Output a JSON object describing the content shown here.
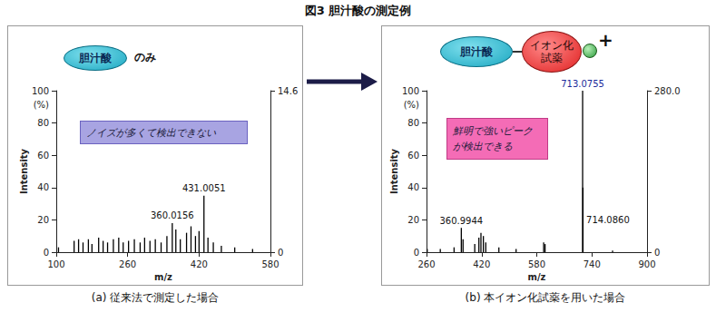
{
  "title": "図3 胆汁酸の測定例",
  "chart_data": [
    {
      "type": "bar",
      "caption": "(a) 従来法で測定した場合",
      "diagram": {
        "molecule": "胆汁酸",
        "suffix": "のみ"
      },
      "annotation": "ノイズが多くて検出できない",
      "xlabel": "m/z",
      "ylabel": "Intensity",
      "ylabel_unit": "(%)",
      "xlim": [
        100,
        580
      ],
      "xticks": [
        100,
        260,
        420,
        580
      ],
      "ylim": [
        0,
        100
      ],
      "yticks": [
        0,
        20,
        40,
        60,
        80,
        100
      ],
      "y2lim": [
        0,
        14.6
      ],
      "y2ticks": [
        0,
        14.6
      ],
      "grid": false,
      "series": [
        {
          "color": "#000000",
          "x": [
            105,
            140,
            150,
            160,
            172,
            180,
            195,
            205,
            215,
            228,
            240,
            250,
            262,
            275,
            288,
            298,
            310,
            322,
            335,
            348,
            360.0156,
            368,
            378,
            392,
            402,
            412,
            420,
            431.0051,
            440,
            452,
            470,
            500,
            540
          ],
          "values": [
            3,
            7,
            8,
            6,
            8,
            5,
            9,
            7,
            6,
            8,
            9,
            6,
            7,
            8,
            6,
            9,
            7,
            8,
            6,
            10,
            18,
            14,
            8,
            12,
            16,
            10,
            13,
            35,
            9,
            6,
            4,
            3,
            2
          ],
          "point_labels": [
            null,
            null,
            null,
            null,
            null,
            null,
            null,
            null,
            null,
            null,
            null,
            null,
            null,
            null,
            null,
            null,
            null,
            null,
            null,
            null,
            "360.0156",
            null,
            null,
            null,
            null,
            null,
            null,
            "431.0051",
            null,
            null,
            null,
            null,
            null
          ]
        }
      ]
    },
    {
      "type": "bar",
      "caption": "(b) 本イオン化試薬を用いた場合",
      "diagram": {
        "molecule": "胆汁酸",
        "reagent": "イオン化試薬",
        "charge": "+"
      },
      "annotation": "鮮明で強いピークが検出できる",
      "xlabel": "m/z",
      "ylabel": "Intensity",
      "ylabel_unit": "(%)",
      "xlim": [
        260,
        900
      ],
      "xticks": [
        260,
        420,
        580,
        740,
        900
      ],
      "ylim": [
        0,
        100
      ],
      "yticks": [
        0,
        20,
        40,
        60,
        80,
        100
      ],
      "y2lim": [
        0,
        280
      ],
      "y2ticks": [
        0,
        {
          "value": 280,
          "label": "280.0"
        }
      ],
      "grid": false,
      "series": [
        {
          "color": "#000000",
          "x": [
            262,
            300,
            340,
            360.9944,
            366,
            400,
            412,
            418,
            425,
            432,
            470,
            520,
            600,
            604,
            713.0755,
            714.086,
            800
          ],
          "values": [
            2,
            2,
            3,
            15,
            8,
            5,
            9,
            12,
            10,
            6,
            3,
            2,
            6,
            5,
            100,
            40,
            1
          ],
          "point_labels": [
            null,
            null,
            null,
            "360.9944",
            null,
            null,
            null,
            null,
            null,
            null,
            null,
            null,
            null,
            null,
            "713.0755",
            "714.0860",
            null
          ]
        }
      ]
    }
  ]
}
